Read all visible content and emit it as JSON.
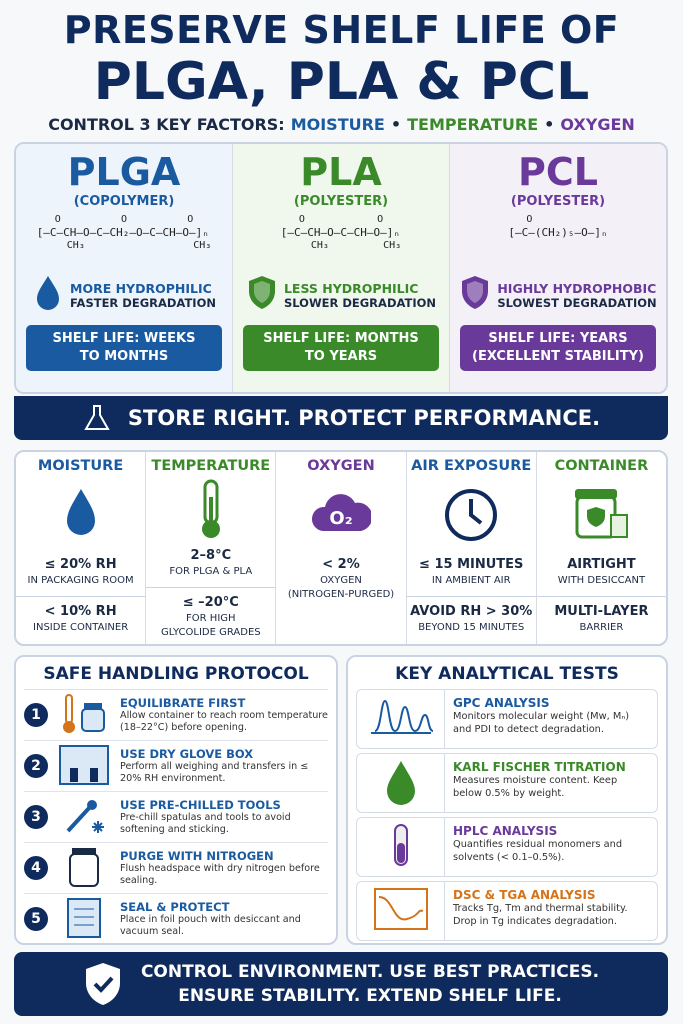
{
  "header": {
    "title_line1": "PRESERVE SHELF LIFE OF",
    "title_line2": "PLGA, PLA & PCL",
    "subtitle": "CONTROL 3 KEY FACTORS:",
    "separator": "•",
    "factors": [
      {
        "text": "MOISTURE",
        "color": "#1a5aa0"
      },
      {
        "text": "TEMPERATURE",
        "color": "#3a8a2a"
      },
      {
        "text": "OXYGEN",
        "color": "#6a3a9a"
      }
    ]
  },
  "polymers": [
    {
      "name": "PLGA",
      "type": "(COPOLYMER)",
      "color": "#1a5aa0",
      "bg": "#eef4fb",
      "formula_top": "   O          O          O",
      "formula_main": "[–C–CH–O–C–CH₂–O–C–CH–O–]ₙ",
      "formula_bottom": "     CH₃                  CH₃",
      "property1": "MORE HYDROPHILIC",
      "property2": "FASTER DEGRADATION",
      "shelf_life": [
        "SHELF LIFE: WEEKS",
        "TO MONTHS"
      ]
    },
    {
      "name": "PLA",
      "type": "(POLYESTER)",
      "color": "#3a8a2a",
      "bg": "#f0f7ec",
      "formula_top": "   O            O",
      "formula_main": "[–C–CH–O–C–CH–O–]ₙ",
      "formula_bottom": "     CH₃         CH₃",
      "property1": "LESS HYDROPHILIC",
      "property2": "SLOWER DEGRADATION",
      "shelf_life": [
        "SHELF LIFE: MONTHS",
        "TO YEARS"
      ]
    },
    {
      "name": "PCL",
      "type": "(POLYESTER)",
      "color": "#6a3a9a",
      "bg": "#f4f0f8",
      "formula_top": "   O",
      "formula_main": "[–C–(CH₂)₅–O–]ₙ",
      "property1": "HIGHLY HYDROPHOBIC",
      "property2": "SLOWEST DEGRADATION",
      "shelf_life": [
        "SHELF LIFE: YEARS",
        "(EXCELLENT STABILITY)"
      ]
    }
  ],
  "banner": "STORE RIGHT. PROTECT PERFORMANCE.",
  "conditions": [
    {
      "title": "MOISTURE",
      "color": "#1a5aa0",
      "blocks": [
        [
          "≤ 20% RH",
          "IN PACKAGING ROOM"
        ],
        [
          "< 10% RH",
          "INSIDE CONTAINER"
        ]
      ]
    },
    {
      "title": "TEMPERATURE",
      "color": "#3a8a2a",
      "blocks": [
        [
          "2–8°C",
          "FOR PLGA & PLA"
        ],
        [
          "≤ –20°C",
          "FOR HIGH",
          "GLYCOLIDE GRADES"
        ]
      ]
    },
    {
      "title": "OXYGEN",
      "color": "#6a3a9a",
      "icon_text": "O₂",
      "blocks": [
        [
          "< 2%",
          "OXYGEN",
          "(NITROGEN-PURGED)"
        ]
      ]
    },
    {
      "title": "AIR EXPOSURE",
      "color": "#1a5aa0",
      "blocks": [
        [
          "≤ 15 MINUTES",
          "IN AMBIENT AIR"
        ],
        [
          "AVOID RH > 30%",
          "BEYOND 15 MINUTES"
        ]
      ]
    },
    {
      "title": "CONTAINER",
      "color": "#3a8a2a",
      "blocks": [
        [
          "AIRTIGHT",
          "WITH DESICCANT"
        ],
        [
          "MULTI-LAYER",
          "BARRIER"
        ]
      ]
    }
  ],
  "handling": {
    "title": "SAFE HANDLING PROTOCOL",
    "steps": [
      {
        "number": "1",
        "title": "EQUILIBRATE FIRST",
        "description": "Allow container to reach room temperature (18–22°C) before opening."
      },
      {
        "number": "2",
        "title": "USE DRY GLOVE BOX",
        "description": "Perform all weighing and transfers in ≤ 20% RH environment."
      },
      {
        "number": "3",
        "title": "USE PRE-CHILLED TOOLS",
        "description": "Pre-chill spatulas and tools to avoid softening and sticking."
      },
      {
        "number": "4",
        "title": "PURGE WITH NITROGEN",
        "description": "Flush headspace with dry nitrogen before sealing."
      },
      {
        "number": "5",
        "title": "SEAL & PROTECT",
        "description": "Place in foil pouch with desiccant and vacuum seal."
      }
    ]
  },
  "tests": {
    "title": "KEY ANALYTICAL TESTS",
    "items": [
      {
        "title": "GPC ANALYSIS",
        "color": "#1a5aa0",
        "description": "Monitors molecular weight (Mw, Mₙ) and PDI to detect degradation."
      },
      {
        "title": "KARL FISCHER TITRATION",
        "color": "#3a8a2a",
        "description": "Measures moisture content. Keep below 0.5% by weight."
      },
      {
        "title": "HPLC ANALYSIS",
        "color": "#6a3a9a",
        "description": "Quantifies residual monomers and solvents (< 0.1–0.5%)."
      },
      {
        "title": "DSC & TGA ANALYSIS",
        "color": "#d4731a",
        "description": "Tracks Tg, Tm and thermal stability. Drop in Tg indicates degradation."
      }
    ]
  },
  "footer": [
    "CONTROL ENVIRONMENT. USE BEST PRACTICES.",
    "ENSURE STABILITY. EXTEND SHELF LIFE."
  ]
}
